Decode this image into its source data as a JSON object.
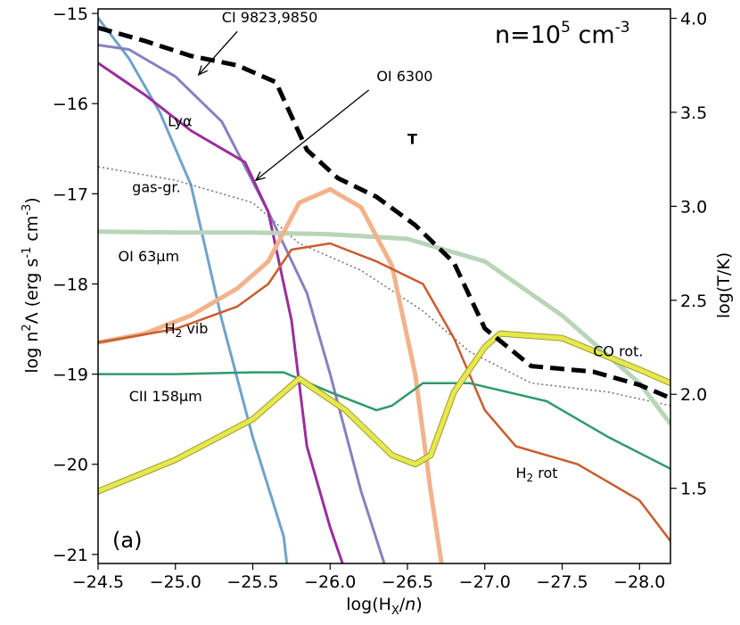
{
  "chart_data": {
    "type": "line",
    "panel_label": "(a)",
    "density_label": {
      "base": "n=10",
      "exp": "5",
      "unit": " cm",
      "unit_exp": "-3"
    },
    "xlabel": {
      "pre": "log(H",
      "sub": "X",
      "post": "/",
      "italic": "n",
      "close": ")"
    },
    "ylabel": {
      "p1": "log n",
      "sup1": "2",
      "p2": "Λ  (erg s",
      "sup2": "-1",
      "p3": " cm",
      "sup3": "-3",
      "p4": ")"
    },
    "y2label": "log(T/K)",
    "xlim": [
      -24.5,
      -28.2
    ],
    "ylim": [
      -21.1,
      -14.95
    ],
    "y2lim": [
      1.1,
      4.05
    ],
    "xticks": [
      -24.5,
      -25.0,
      -25.5,
      -26.0,
      -26.5,
      -27.0,
      -27.5,
      -28.0
    ],
    "xtick_labels": [
      "−24.5",
      "−25.0",
      "−25.5",
      "−26.0",
      "−26.5",
      "−27.0",
      "−27.5",
      "−28.0"
    ],
    "yticks": [
      -15,
      -16,
      -17,
      -18,
      -19,
      -20,
      -21
    ],
    "ytick_labels": [
      "−15",
      "−16",
      "−17",
      "−18",
      "−19",
      "−20",
      "−21"
    ],
    "y2ticks": [
      4.0,
      3.5,
      3.0,
      2.5,
      2.0,
      1.5
    ],
    "y2tick_labels": [
      "4.0",
      "3.5",
      "3.0",
      "2.5",
      "2.0",
      "1.5"
    ],
    "series": [
      {
        "name": "Lyα",
        "color": "#6fa3cc",
        "width": 3,
        "x": [
          -24.5,
          -24.7,
          -24.9,
          -25.1,
          -25.3,
          -25.5,
          -25.7,
          -25.72
        ],
        "y": [
          -15.05,
          -15.5,
          -16.1,
          -16.9,
          -18.4,
          -19.7,
          -20.8,
          -21.1
        ]
      },
      {
        "name": "CI 9823,9850",
        "color": "#8a7fc0",
        "width": 3,
        "x": [
          -24.5,
          -24.7,
          -25.0,
          -25.3,
          -25.6,
          -25.85,
          -26.0,
          -26.2,
          -26.35
        ],
        "y": [
          -15.35,
          -15.4,
          -15.7,
          -16.2,
          -17.2,
          -18.1,
          -19.0,
          -20.3,
          -21.1
        ]
      },
      {
        "name": "OI 6300",
        "color": "#9a2e9c",
        "width": 3,
        "x": [
          -24.5,
          -24.8,
          -25.1,
          -25.45,
          -25.6,
          -25.75,
          -25.85,
          -26.0,
          -26.08
        ],
        "y": [
          -15.55,
          -15.9,
          -16.3,
          -16.65,
          -17.2,
          -18.4,
          -19.8,
          -20.7,
          -21.1
        ]
      },
      {
        "name": "gas-gr.",
        "color": "#777777",
        "width": 1.6,
        "dash": "2,3",
        "x": [
          -24.5,
          -25.0,
          -25.5,
          -25.8,
          -26.2,
          -26.6,
          -26.9,
          -27.3,
          -27.8,
          -28.2
        ],
        "y": [
          -16.7,
          -16.85,
          -17.1,
          -17.55,
          -17.85,
          -18.3,
          -18.75,
          -19.1,
          -19.2,
          -19.35
        ]
      },
      {
        "name": "OI 63μm",
        "color": "#b9d5b9",
        "width": 5,
        "x": [
          -24.5,
          -25.0,
          -25.5,
          -26.0,
          -26.5,
          -27.0,
          -27.5,
          -28.0,
          -28.2
        ],
        "y": [
          -17.42,
          -17.43,
          -17.43,
          -17.45,
          -17.5,
          -17.75,
          -18.35,
          -19.1,
          -19.55
        ]
      },
      {
        "name": "H2 vib",
        "color": "#f2b38c",
        "width": 5,
        "x": [
          -24.5,
          -24.8,
          -25.1,
          -25.4,
          -25.6,
          -25.8,
          -26.0,
          -26.2,
          -26.4,
          -26.55,
          -26.65,
          -26.72
        ],
        "y": [
          -18.65,
          -18.55,
          -18.35,
          -18.05,
          -17.75,
          -17.1,
          -16.95,
          -17.15,
          -17.8,
          -19.0,
          -20.3,
          -21.1
        ]
      },
      {
        "name": "H2 rot",
        "color": "#c95d2d",
        "width": 2.5,
        "x": [
          -24.5,
          -25.0,
          -25.4,
          -25.6,
          -25.75,
          -26.0,
          -26.3,
          -26.6,
          -26.8,
          -27.0,
          -27.2,
          -27.6,
          -28.0,
          -28.2
        ],
        "y": [
          -18.65,
          -18.5,
          -18.25,
          -18.0,
          -17.62,
          -17.55,
          -17.75,
          -18.0,
          -18.6,
          -19.4,
          -19.8,
          -20.0,
          -20.4,
          -20.85
        ]
      },
      {
        "name": "CII 158μm",
        "color": "#2f9a6b",
        "width": 2.5,
        "x": [
          -24.5,
          -25.0,
          -25.5,
          -25.7,
          -26.0,
          -26.3,
          -26.4,
          -26.6,
          -26.9,
          -27.4,
          -27.8,
          -28.2
        ],
        "y": [
          -19.0,
          -19.0,
          -18.98,
          -18.98,
          -19.2,
          -19.4,
          -19.35,
          -19.1,
          -19.1,
          -19.3,
          -19.7,
          -20.05
        ]
      },
      {
        "name": "CO rot.",
        "color": "#e6e84c",
        "stroke": "#9c9c33",
        "width": 5,
        "x": [
          -24.5,
          -25.0,
          -25.5,
          -25.8,
          -26.1,
          -26.4,
          -26.55,
          -26.65,
          -26.8,
          -27.0,
          -27.1,
          -27.5,
          -28.0,
          -28.2
        ],
        "y": [
          -20.3,
          -19.95,
          -19.5,
          -19.05,
          -19.4,
          -19.9,
          -20.0,
          -19.9,
          -19.2,
          -18.7,
          -18.55,
          -18.6,
          -18.95,
          -19.1
        ]
      },
      {
        "name": "T",
        "axis": "right",
        "color": "#000000",
        "width": 5,
        "dash": "16,8",
        "x": [
          -24.5,
          -24.8,
          -25.1,
          -25.4,
          -25.65,
          -25.85,
          -26.05,
          -26.3,
          -26.55,
          -26.8,
          -27.0,
          -27.3,
          -27.7,
          -28.0,
          -28.2
        ],
        "y": [
          3.95,
          3.88,
          3.8,
          3.75,
          3.66,
          3.3,
          3.15,
          3.05,
          2.9,
          2.7,
          2.35,
          2.15,
          2.12,
          2.05,
          1.98
        ]
      }
    ],
    "annotations": [
      {
        "text": "CI 9823,9850",
        "x": -25.3,
        "y": -15.1
      },
      {
        "text": "OI 6300",
        "x": -26.3,
        "y": -15.75
      },
      {
        "text": "Lyα",
        "x": -24.95,
        "y": -16.25
      },
      {
        "text": "gas-gr.",
        "x": -24.72,
        "y": -16.98
      },
      {
        "text": "OI 63μm",
        "x": -24.63,
        "y": -17.75
      },
      {
        "text": "H₂ vib",
        "x": -24.93,
        "y": -18.55
      },
      {
        "text": "CII 158μm",
        "x": -24.7,
        "y": -19.3
      },
      {
        "text": "H₂ rot",
        "x": -27.2,
        "y": -20.15
      },
      {
        "text": "CO rot.",
        "x": -27.7,
        "y": -18.8
      },
      {
        "text": "T",
        "x": -26.5,
        "y": -16.45
      }
    ],
    "arrows": [
      {
        "from": [
          -25.4,
          -15.2
        ],
        "to": [
          -25.15,
          -15.68
        ]
      },
      {
        "from": [
          -26.25,
          -15.85
        ],
        "to": [
          -25.52,
          -16.85
        ]
      }
    ]
  }
}
